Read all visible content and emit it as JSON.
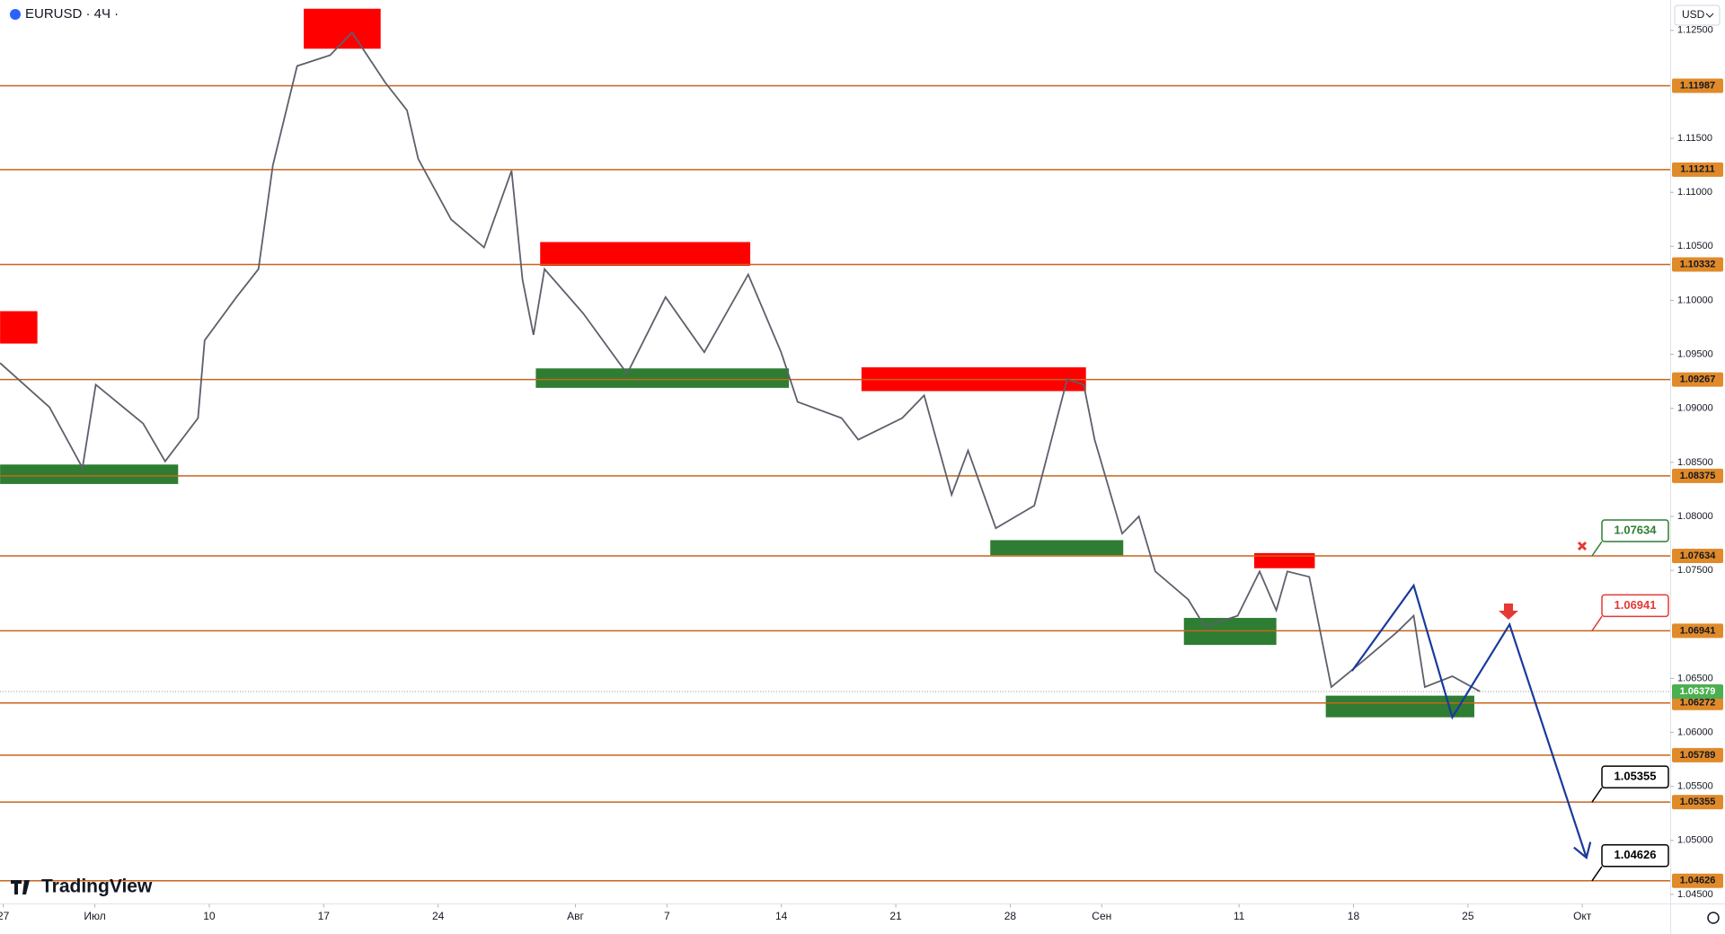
{
  "chart_data": {
    "type": "line",
    "title": "EURUSD · 4Ч ·",
    "currency": "USD",
    "brand": "TradingView",
    "color": "#5d606b",
    "xlim": [
      -0.144,
      72.84
    ],
    "ylim": [
      1.04412,
      1.12781
    ],
    "grid": false,
    "xticks": [
      {
        "value": 0,
        "label": "27"
      },
      {
        "value": 4,
        "label": "Июл"
      },
      {
        "value": 9,
        "label": "10"
      },
      {
        "value": 14,
        "label": "17"
      },
      {
        "value": 19,
        "label": "24"
      },
      {
        "value": 25,
        "label": "Авг"
      },
      {
        "value": 29,
        "label": "7"
      },
      {
        "value": 34,
        "label": "14"
      },
      {
        "value": 39,
        "label": "21"
      },
      {
        "value": 44,
        "label": "28"
      },
      {
        "value": 48,
        "label": "Сен"
      },
      {
        "value": 54,
        "label": "11"
      },
      {
        "value": 59,
        "label": "18"
      },
      {
        "value": 64,
        "label": "25"
      },
      {
        "value": 69,
        "label": "Окт"
      }
    ],
    "yticks": [
      {
        "value": 1.125,
        "label": "1.12500"
      },
      {
        "value": 1.115,
        "label": "1.11500"
      },
      {
        "value": 1.11,
        "label": "1.11000"
      },
      {
        "value": 1.105,
        "label": "1.10500"
      },
      {
        "value": 1.1,
        "label": "1.10000"
      },
      {
        "value": 1.095,
        "label": "1.09500"
      },
      {
        "value": 1.09,
        "label": "1.09000"
      },
      {
        "value": 1.085,
        "label": "1.08500"
      },
      {
        "value": 1.08,
        "label": "1.08000"
      },
      {
        "value": 1.075,
        "label": "1.07500"
      },
      {
        "value": 1.065,
        "label": "1.06500"
      },
      {
        "value": 1.06,
        "label": "1.06000"
      },
      {
        "value": 1.055,
        "label": "1.05500"
      },
      {
        "value": 1.05,
        "label": "1.05000"
      },
      {
        "value": 1.045,
        "label": "1.04500"
      }
    ],
    "x": [
      -0.14,
      2.02,
      3.46,
      4.04,
      6.11,
      7.07,
      8.51,
      8.8,
      10.19,
      11.15,
      11.78,
      12.84,
      14.28,
      15.24,
      16.68,
      17.64,
      18.13,
      19.57,
      21.01,
      22.21,
      22.69,
      23.17,
      23.65,
      25.34,
      27.26,
      28.94,
      30.63,
      32.55,
      33.99,
      34.71,
      36.63,
      37.36,
      39.28,
      40.24,
      41.44,
      42.16,
      43.37,
      45.05,
      46.49,
      47.21,
      47.69,
      48.89,
      49.62,
      50.34,
      51.78,
      52.5,
      53.94,
      54.9,
      55.63,
      56.11,
      57.07,
      58.03,
      59.47,
      60.91,
      61.63,
      62.12,
      63.32,
      64.52
    ],
    "values": [
      1.0942,
      1.0901,
      1.0845,
      1.0922,
      1.0886,
      1.0851,
      1.0891,
      1.0963,
      1.1003,
      1.1029,
      1.1125,
      1.1217,
      1.1227,
      1.1248,
      1.1202,
      1.1176,
      1.1131,
      1.1075,
      1.1049,
      1.112,
      1.1019,
      1.0968,
      1.1029,
      1.0988,
      1.0932,
      1.1003,
      1.0952,
      1.1024,
      1.0952,
      1.0906,
      1.0891,
      1.0871,
      1.0891,
      1.0912,
      1.082,
      1.0861,
      1.0789,
      1.081,
      1.0927,
      1.0922,
      1.0871,
      1.0784,
      1.08,
      1.0749,
      1.0723,
      1.0698,
      1.0708,
      1.0749,
      1.0713,
      1.0749,
      1.0744,
      1.0642,
      1.0667,
      1.0693,
      1.0708,
      1.0642,
      1.0652,
      1.0638
    ],
    "levels": [
      1.11987,
      1.11211,
      1.10332,
      1.09267,
      1.08375,
      1.07634,
      1.06941,
      1.06272,
      1.05789,
      1.05355,
      1.04626
    ],
    "level_color": "#c8641e",
    "current_price": 1.06379,
    "current_color": "#4caf50",
    "zones": [
      {
        "x": [
          -0.14,
          1.49
        ],
        "y": [
          1.096,
          1.099
        ],
        "color": "#ff0000"
      },
      {
        "x": [
          -0.14,
          7.64
        ],
        "y": [
          1.083,
          1.0848
        ],
        "color": "#2e7d32"
      },
      {
        "x": [
          13.13,
          16.49
        ],
        "y": [
          1.1233,
          1.127
        ],
        "color": "#ff0000"
      },
      {
        "x": [
          23.46,
          32.64
        ],
        "y": [
          1.1032,
          1.1054
        ],
        "color": "#ff0000"
      },
      {
        "x": [
          23.27,
          34.33
        ],
        "y": [
          1.0919,
          1.0937
        ],
        "color": "#2e7d32"
      },
      {
        "x": [
          37.5,
          47.31
        ],
        "y": [
          1.0916,
          1.0938
        ],
        "color": "#ff0000"
      },
      {
        "x": [
          43.13,
          48.94
        ],
        "y": [
          1.0764,
          1.0778
        ],
        "color": "#2e7d32"
      },
      {
        "x": [
          54.66,
          57.31
        ],
        "y": [
          1.0752,
          1.0766
        ],
        "color": "#ff0000"
      },
      {
        "x": [
          51.59,
          55.63
        ],
        "y": [
          1.0681,
          1.0706
        ],
        "color": "#2e7d32"
      },
      {
        "x": [
          57.79,
          64.28
        ],
        "y": [
          1.0614,
          1.0634
        ],
        "color": "#2e7d32"
      }
    ],
    "projection": {
      "color": "#1a3a9c",
      "x": [
        58.94,
        61.63,
        63.32,
        65.82,
        69.18
      ],
      "values": [
        1.0657,
        1.0736,
        1.0614,
        1.07,
        1.0484
      ]
    },
    "callouts": [
      {
        "value": 1.07634,
        "color": "#2e7d32"
      },
      {
        "value": 1.06941,
        "color": "#e53935"
      },
      {
        "value": 1.05355,
        "color": "#000000"
      },
      {
        "value": 1.04626,
        "color": "#000000"
      }
    ]
  }
}
